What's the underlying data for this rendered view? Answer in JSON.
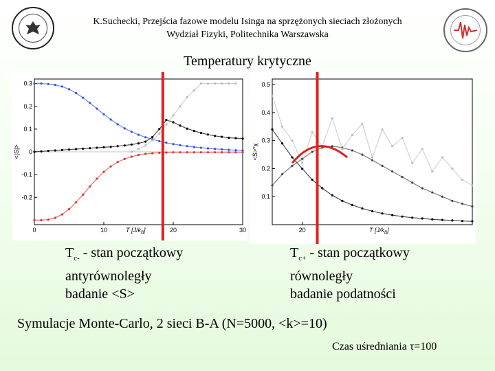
{
  "header": {
    "line1": "K.Suchecki, Przejścia fazowe modelu Isinga na sprzężonych sieciach złożonych",
    "line2": "Wydział Fizyki, Politechnika Warszawska"
  },
  "slide_title": "Temperatury krytyczne",
  "logos": {
    "left": "university-seal-icon",
    "right": "faculty-of-physics-logo-icon"
  },
  "chart_data": [
    {
      "type": "scatter",
      "ylabel": "<|S|>",
      "xlabel": "T [J/k",
      "xlabel_sub": "B",
      "xlabel_end": "]",
      "xlim": [
        0,
        30
      ],
      "ylim": [
        -0.32,
        0.32
      ],
      "x_ticks": [
        0,
        10,
        20,
        30
      ],
      "y_ticks": [
        0.3,
        0.2,
        0.1,
        0,
        -0.1,
        -0.2
      ],
      "y_tick_labels": [
        "0.3",
        "0.2",
        "0.1",
        "0",
        "-0.1",
        "-0.2"
      ],
      "critical_line_x": 18.5,
      "series": [
        {
          "color": "#3050e0",
          "x": [
            0,
            1,
            2,
            3,
            4,
            5,
            6,
            7,
            8,
            9,
            10,
            11,
            12,
            13,
            14,
            15,
            16,
            17,
            18,
            19,
            20,
            21,
            22,
            23,
            24,
            25,
            26,
            27,
            28,
            29,
            30
          ],
          "y": [
            0.3,
            0.3,
            0.298,
            0.294,
            0.287,
            0.275,
            0.258,
            0.238,
            0.215,
            0.19,
            0.165,
            0.142,
            0.121,
            0.103,
            0.088,
            0.075,
            0.064,
            0.055,
            0.047,
            0.04,
            0.034,
            0.029,
            0.025,
            0.021,
            0.018,
            0.015,
            0.013,
            0.011,
            0.009,
            0.007,
            0.006
          ]
        },
        {
          "color": "#e03030",
          "x": [
            0,
            1,
            2,
            3,
            4,
            5,
            6,
            7,
            8,
            9,
            10,
            11,
            12,
            13,
            14,
            15,
            16,
            17,
            18,
            19,
            20,
            21,
            22,
            23,
            24,
            25,
            26,
            27,
            28,
            29,
            30
          ],
          "y": [
            -0.3,
            -0.3,
            -0.298,
            -0.29,
            -0.275,
            -0.252,
            -0.222,
            -0.188,
            -0.152,
            -0.118,
            -0.088,
            -0.064,
            -0.045,
            -0.031,
            -0.021,
            -0.014,
            -0.009,
            -0.006,
            -0.004,
            -0.003,
            -0.002,
            -0.002,
            -0.002,
            -0.002,
            -0.002,
            -0.002,
            -0.002,
            -0.002,
            -0.002,
            -0.002,
            -0.002
          ]
        },
        {
          "color": "#000000",
          "x": [
            0,
            1,
            2,
            3,
            4,
            5,
            6,
            7,
            8,
            9,
            10,
            11,
            12,
            13,
            14,
            15,
            16,
            17,
            18,
            19,
            20,
            21,
            22,
            23,
            24,
            25,
            26,
            27,
            28,
            29,
            30
          ],
          "y": [
            0.0,
            0.002,
            0.004,
            0.006,
            0.008,
            0.01,
            0.012,
            0.014,
            0.016,
            0.018,
            0.02,
            0.022,
            0.025,
            0.028,
            0.032,
            0.037,
            0.045,
            0.065,
            0.1,
            0.14,
            0.13,
            0.115,
            0.102,
            0.092,
            0.083,
            0.076,
            0.07,
            0.066,
            0.062,
            0.06,
            0.058
          ]
        },
        {
          "color": "#bbbbbb",
          "x": [
            14,
            15,
            16,
            17,
            18,
            19,
            20,
            21,
            22,
            23,
            24,
            25,
            26,
            27,
            28,
            29
          ],
          "y": [
            0.0,
            0.012,
            0.028,
            0.05,
            0.08,
            0.12,
            0.16,
            0.2,
            0.24,
            0.27,
            0.3,
            0.3,
            0.3,
            0.3,
            0.3,
            0.3
          ]
        }
      ]
    },
    {
      "type": "scatter",
      "ylabel": "<S>*χ",
      "xlabel": "T  [J/k",
      "xlabel_sub": "B",
      "xlabel_end": "]",
      "xlim": [
        17,
        37
      ],
      "ylim": [
        0,
        0.52
      ],
      "x_ticks": [
        20
      ],
      "y_ticks": [
        0.5,
        0.4,
        0.3,
        0.2,
        0.1
      ],
      "y_tick_labels": [
        "0.5",
        "0.4",
        "0.3",
        "0.2",
        "0.1"
      ],
      "critical_line_x": 21.5,
      "series": [
        {
          "color": "#000000",
          "x": [
            17,
            18,
            19,
            20,
            21,
            22,
            23,
            24,
            25,
            26,
            27,
            28,
            29,
            30,
            31,
            32,
            33,
            34,
            35,
            36,
            37
          ],
          "y": [
            0.34,
            0.29,
            0.24,
            0.2,
            0.16,
            0.13,
            0.105,
            0.085,
            0.07,
            0.058,
            0.048,
            0.04,
            0.034,
            0.029,
            0.025,
            0.022,
            0.019,
            0.017,
            0.015,
            0.013,
            0.012
          ]
        },
        {
          "color": "#444444",
          "x": [
            17,
            18,
            19,
            20,
            21,
            22,
            23,
            24,
            25,
            26,
            27,
            28,
            29,
            30,
            31,
            32,
            33,
            34,
            35,
            36,
            37
          ],
          "y": [
            0.14,
            0.18,
            0.21,
            0.235,
            0.26,
            0.275,
            0.28,
            0.275,
            0.265,
            0.25,
            0.23,
            0.21,
            0.19,
            0.17,
            0.15,
            0.13,
            0.115,
            0.1,
            0.085,
            0.075,
            0.065
          ]
        },
        {
          "color": "#bdbdbd",
          "x": [
            17,
            18,
            19,
            20,
            21,
            22,
            23,
            24,
            25,
            26,
            27,
            28,
            29,
            30,
            31,
            32,
            33,
            34,
            35,
            36,
            37
          ],
          "y": [
            0.46,
            0.35,
            0.3,
            0.22,
            0.33,
            0.28,
            0.38,
            0.27,
            0.32,
            0.36,
            0.24,
            0.34,
            0.28,
            0.31,
            0.22,
            0.27,
            0.19,
            0.24,
            0.2,
            0.16,
            0.14
          ]
        }
      ]
    }
  ],
  "captions": {
    "left": {
      "t": "T",
      "sub": "c-",
      "line1": " - stan początkowy",
      "line2": "antyrównoległy",
      "line3": "badanie <S>"
    },
    "right": {
      "t": "T",
      "sub": "c+",
      "line1": " - stan początkowy",
      "line2": "równoległy",
      "line3": "badanie podatności"
    }
  },
  "bottom_line": "Symulacje Monte-Carlo, 2 sieci B-A (N=5000, <k>=10)",
  "note": "Czas uśredniania τ=100",
  "colors": {
    "critical_line": "#e02020",
    "background_bottom": "#e4fadc"
  }
}
